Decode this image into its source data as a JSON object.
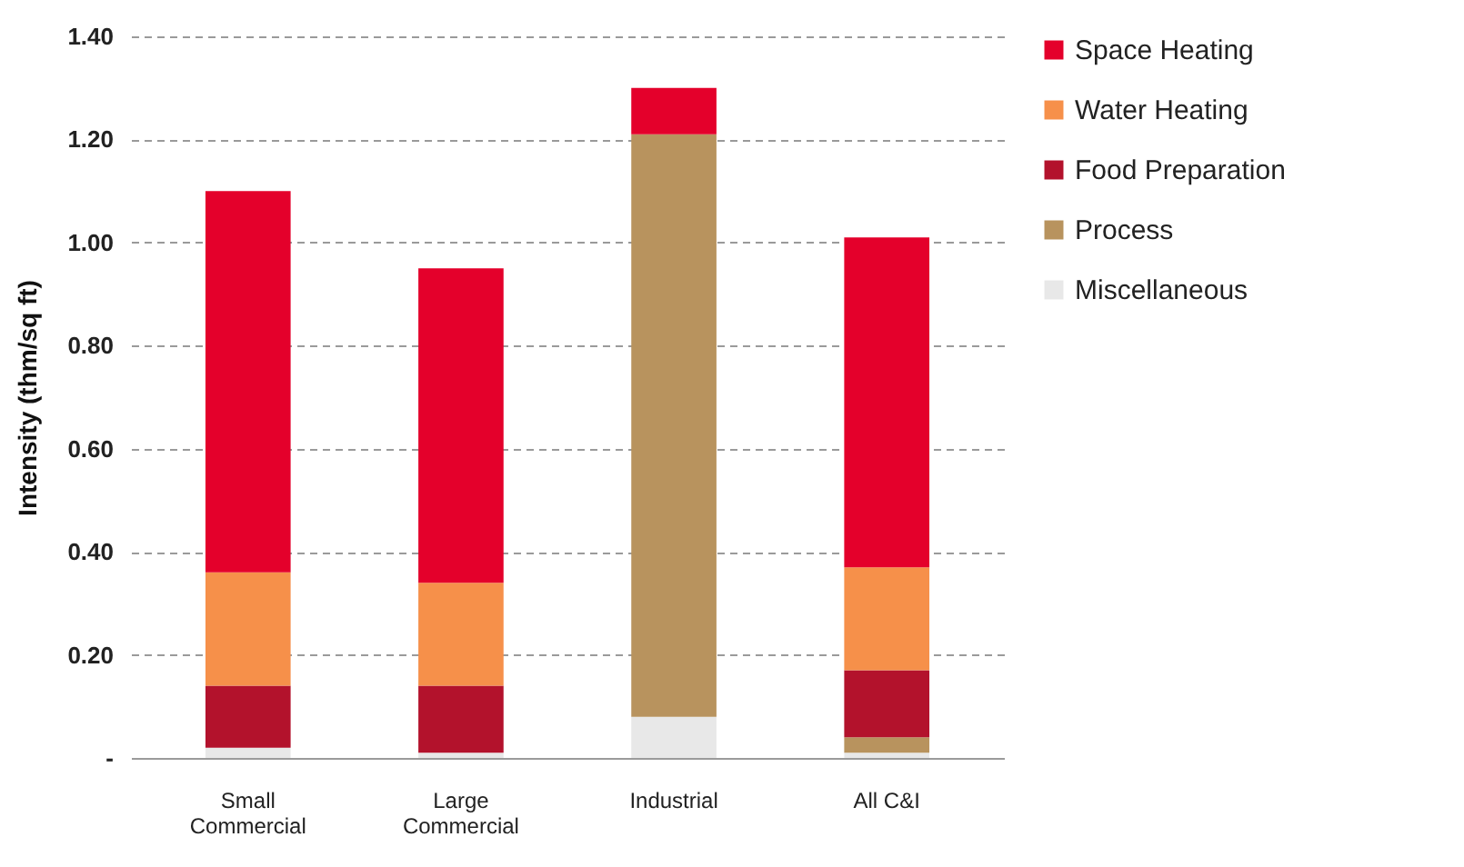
{
  "chart_data": {
    "type": "bar",
    "stacked": true,
    "ylabel": "Intensity (thm/sq ft)",
    "categories": [
      "Small Commercial",
      "Large Commercial",
      "Industrial",
      "All C&I"
    ],
    "series": [
      {
        "name": "Miscellaneous",
        "color": "#e8e8e8",
        "values": [
          0.02,
          0.01,
          0.08,
          0.01
        ]
      },
      {
        "name": "Process",
        "color": "#b8935e",
        "values": [
          null,
          null,
          1.13,
          0.03
        ]
      },
      {
        "name": "Food Preparation",
        "color": "#b3122c",
        "values": [
          0.12,
          0.13,
          null,
          0.13
        ]
      },
      {
        "name": "Water Heating",
        "color": "#f6904a",
        "values": [
          0.22,
          0.2,
          null,
          0.2
        ]
      },
      {
        "name": "Space Heating",
        "color": "#e4002b",
        "values": [
          0.74,
          0.61,
          0.09,
          0.64
        ]
      }
    ],
    "ylim": [
      0,
      1.4
    ],
    "yticks": [
      {
        "value": 0,
        "label": "-"
      },
      {
        "value": 0.2,
        "label": "0.20"
      },
      {
        "value": 0.4,
        "label": "0.40"
      },
      {
        "value": 0.6,
        "label": "0.60"
      },
      {
        "value": 0.8,
        "label": "0.80"
      },
      {
        "value": 1,
        "label": "1.00"
      },
      {
        "value": 1.2,
        "label": "1.20"
      },
      {
        "value": 1.4,
        "label": "1.40"
      }
    ],
    "grid": "y",
    "legend": "right"
  }
}
